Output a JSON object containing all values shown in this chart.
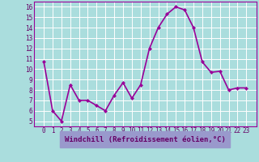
{
  "x": [
    0,
    1,
    2,
    3,
    4,
    5,
    6,
    7,
    8,
    9,
    10,
    11,
    12,
    13,
    14,
    15,
    16,
    17,
    18,
    19,
    20,
    21,
    22,
    23
  ],
  "y": [
    10.7,
    6.0,
    5.0,
    8.5,
    7.0,
    7.0,
    6.5,
    6.0,
    7.5,
    8.7,
    7.2,
    8.5,
    12.0,
    14.0,
    15.3,
    16.0,
    15.7,
    14.0,
    10.7,
    9.7,
    9.8,
    8.0,
    8.2,
    8.2
  ],
  "xlabel": "Windchill (Refroidissement éolien,°C)",
  "ylim": [
    4.5,
    16.5
  ],
  "yticks": [
    5,
    6,
    7,
    8,
    9,
    10,
    11,
    12,
    13,
    14,
    15,
    16
  ],
  "xticks": [
    0,
    1,
    2,
    3,
    4,
    5,
    6,
    7,
    8,
    9,
    10,
    11,
    12,
    13,
    14,
    15,
    16,
    17,
    18,
    19,
    20,
    21,
    22,
    23
  ],
  "line_color": "#990099",
  "marker": "D",
  "marker_size": 2.0,
  "bg_color": "#aadddd",
  "grid_color": "#ffffff",
  "xlabel_color": "#660066",
  "xlabel_bg": "#9999cc",
  "tick_label_color": "#660066",
  "line_width": 1.2,
  "tick_fontsize": 5.5,
  "xlabel_fontsize": 6.5
}
